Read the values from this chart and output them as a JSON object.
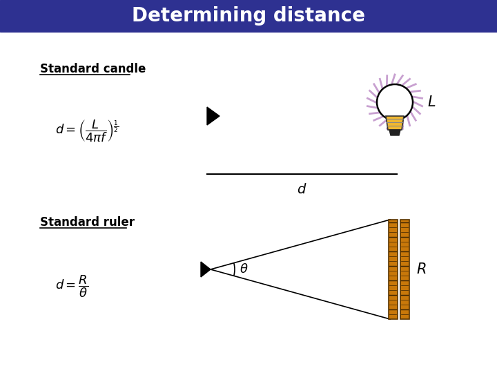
{
  "title": "Determining distance",
  "title_bg_color": "#2e3191",
  "title_text_color": "#ffffff",
  "bg_color": "#ffffff",
  "section1_label": "Standard candle",
  "section2_label": "Standard ruler",
  "formula1": "$d = \\left(\\dfrac{L}{4\\pi f}\\right)^{\\frac{1}{2}}$",
  "formula2": "$d = \\dfrac{R}{\\theta}$",
  "label_L": "$L$",
  "label_d1": "$d$",
  "label_theta": "$\\theta$",
  "label_R": "$R$"
}
